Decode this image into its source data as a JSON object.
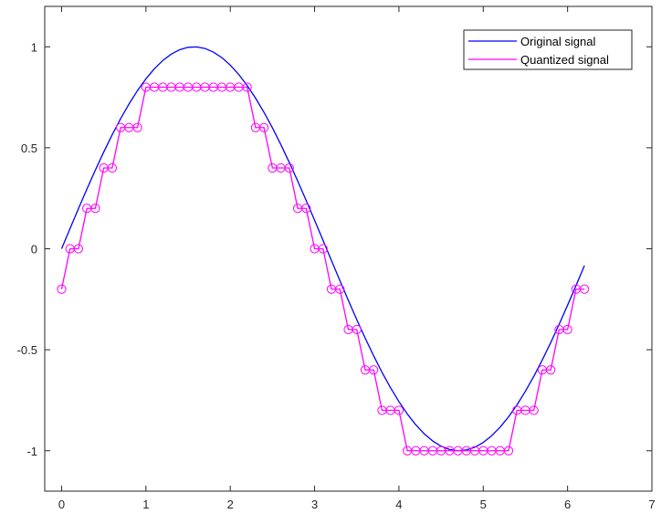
{
  "chart_data": {
    "type": "line",
    "title": "",
    "xlabel": "",
    "ylabel": "",
    "xlim": [
      -0.2,
      7
    ],
    "ylim": [
      -1.2,
      1.2
    ],
    "xticks": [
      0,
      1,
      2,
      3,
      4,
      5,
      6,
      7
    ],
    "xtick_labels": [
      "0",
      "1",
      "2",
      "3",
      "4",
      "5",
      "6",
      "7"
    ],
    "yticks": [
      -1,
      -0.5,
      0,
      0.5,
      1
    ],
    "ytick_labels": [
      "-1",
      "-0.5",
      "0",
      "0.5",
      "1"
    ],
    "grid": false,
    "legend_position": "top-right",
    "series": [
      {
        "name": "Original signal",
        "style": "line",
        "color": "#0000ff",
        "x": [
          0,
          0.1,
          0.2,
          0.3,
          0.4,
          0.5,
          0.6,
          0.7,
          0.8,
          0.9,
          1.0,
          1.1,
          1.2,
          1.3,
          1.4,
          1.5,
          1.6,
          1.7,
          1.8,
          1.9,
          2.0,
          2.1,
          2.2,
          2.3,
          2.4,
          2.5,
          2.6,
          2.7,
          2.8,
          2.9,
          3.0,
          3.1,
          3.2,
          3.3,
          3.4,
          3.5,
          3.6,
          3.7,
          3.8,
          3.9,
          4.0,
          4.1,
          4.2,
          4.3,
          4.4,
          4.5,
          4.6,
          4.7,
          4.8,
          4.9,
          5.0,
          5.1,
          5.2,
          5.3,
          5.4,
          5.5,
          5.6,
          5.7,
          5.8,
          5.9,
          6.0,
          6.1,
          6.2
        ],
        "y": [
          0,
          0.0998,
          0.1987,
          0.2955,
          0.3894,
          0.4794,
          0.5646,
          0.6442,
          0.7174,
          0.7833,
          0.8415,
          0.8912,
          0.932,
          0.9636,
          0.9854,
          0.9975,
          0.9996,
          0.9917,
          0.9738,
          0.9463,
          0.9093,
          0.8632,
          0.8085,
          0.7457,
          0.6755,
          0.5985,
          0.5155,
          0.4274,
          0.335,
          0.2392,
          0.1411,
          0.0416,
          -0.0584,
          -0.1577,
          -0.2555,
          -0.3508,
          -0.4425,
          -0.5298,
          -0.6119,
          -0.6878,
          -0.7568,
          -0.8183,
          -0.8716,
          -0.9162,
          -0.9516,
          -0.9775,
          -0.9937,
          -0.9999,
          -0.9962,
          -0.9825,
          -0.9589,
          -0.9258,
          -0.8835,
          -0.8323,
          -0.7728,
          -0.7055,
          -0.6313,
          -0.5507,
          -0.4646,
          -0.3739,
          -0.2794,
          -0.1822,
          -0.0831
        ]
      },
      {
        "name": "Quantized signal",
        "style": "line-markers",
        "marker": "circle",
        "color": "#ff00ff",
        "x": [
          0,
          0.1,
          0.2,
          0.3,
          0.4,
          0.5,
          0.6,
          0.7,
          0.8,
          0.9,
          1.0,
          1.1,
          1.2,
          1.3,
          1.4,
          1.5,
          1.6,
          1.7,
          1.8,
          1.9,
          2.0,
          2.1,
          2.2,
          2.3,
          2.4,
          2.5,
          2.6,
          2.7,
          2.8,
          2.9,
          3.0,
          3.1,
          3.2,
          3.3,
          3.4,
          3.5,
          3.6,
          3.7,
          3.8,
          3.9,
          4.0,
          4.1,
          4.2,
          4.3,
          4.4,
          4.5,
          4.6,
          4.7,
          4.8,
          4.9,
          5.0,
          5.1,
          5.2,
          5.3,
          5.4,
          5.5,
          5.6,
          5.7,
          5.8,
          5.9,
          6.0,
          6.1,
          6.2
        ],
        "y": [
          -0.2,
          0,
          0,
          0.2,
          0.2,
          0.4,
          0.4,
          0.6,
          0.6,
          0.6,
          0.8,
          0.8,
          0.8,
          0.8,
          0.8,
          0.8,
          0.8,
          0.8,
          0.8,
          0.8,
          0.8,
          0.8,
          0.8,
          0.6,
          0.6,
          0.4,
          0.4,
          0.4,
          0.2,
          0.2,
          0,
          0,
          -0.2,
          -0.2,
          -0.4,
          -0.4,
          -0.6,
          -0.6,
          -0.8,
          -0.8,
          -0.8,
          -1.0,
          -1.0,
          -1.0,
          -1.0,
          -1.0,
          -1.0,
          -1.0,
          -1.0,
          -1.0,
          -1.0,
          -1.0,
          -1.0,
          -1.0,
          -0.8,
          -0.8,
          -0.8,
          -0.6,
          -0.6,
          -0.4,
          -0.4,
          -0.2,
          -0.2
        ]
      }
    ]
  }
}
